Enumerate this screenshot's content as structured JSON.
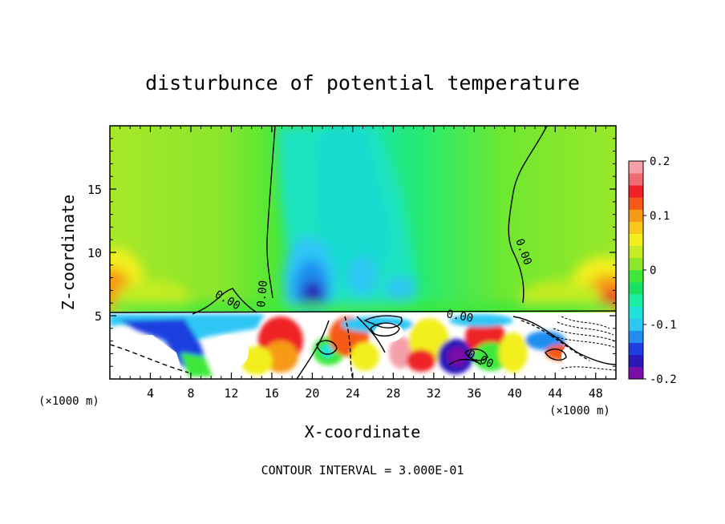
{
  "chart_data": {
    "type": "heatmap",
    "title": "disturbunce of potential temperature",
    "xlabel": "X-coordinate",
    "ylabel": "Z-coordinate",
    "x_unit_left": "(×1000 m)",
    "x_unit_right": "(×1000 m)",
    "x_ticks": [
      4,
      8,
      12,
      16,
      20,
      24,
      28,
      32,
      36,
      40,
      44,
      48
    ],
    "y_ticks": [
      5,
      10,
      15
    ],
    "xlim": [
      0,
      50
    ],
    "ylim": [
      0,
      20
    ],
    "colorbar": {
      "ticks": [
        "0.2",
        "0.1",
        "0",
        "-0.1",
        "-0.2"
      ],
      "range": [
        -0.2,
        0.2
      ],
      "colors": [
        "#7a0fa8",
        "#2a18b8",
        "#1f3fe0",
        "#1f8ef0",
        "#2ec6f5",
        "#1fe3d9",
        "#18f0a0",
        "#18e060",
        "#3ee83a",
        "#8be82a",
        "#c4ec22",
        "#f2ef1a",
        "#f7c818",
        "#f79a17",
        "#f55a17",
        "#ef2026",
        "#f06a72",
        "#f5a0a8"
      ]
    },
    "contour_labels": [
      "0.00",
      "0.00",
      "0.00",
      "0.00",
      "0.00"
    ],
    "footer": "CONTOUR INTERVAL = 3.000E-01"
  }
}
